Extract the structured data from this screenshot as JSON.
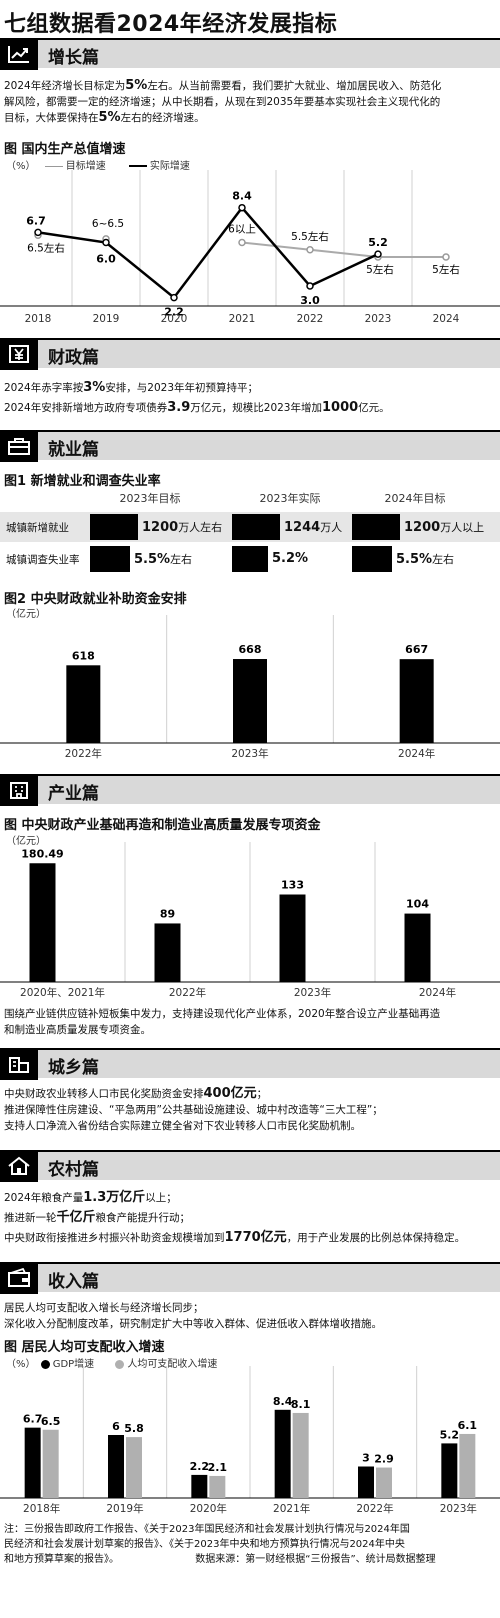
{
  "page_title": "七组数据看2024年经济发展指标",
  "sections": {
    "growth": {
      "label": "增长篇",
      "text_lines": [
        [
          "2024年经济增长目标定为",
          "5%",
          "左右。从当前需要看，我们要扩大就业、增加居民收入、防范化"
        ],
        [
          "解风险，都需要一定的经济增速；从中长期看，从现在到2035年要基本实现社会主义现代化的"
        ],
        [
          "目标，大体要保持在",
          "5%",
          "左右的经济增速。"
        ]
      ]
    },
    "finance": {
      "label": "财政篇",
      "text_lines": [
        [
          "2024年赤字率按",
          "3%",
          "安排，与2023年年初预算持平；"
        ],
        [
          "2024年安排新增地方政府专项债券",
          "3.9",
          "万亿元，规模比2023年增加",
          "1000",
          "亿元。"
        ]
      ]
    },
    "employment": {
      "label": "就业篇"
    },
    "industry": {
      "label": "产业篇",
      "text_lines": [
        [
          "围绕产业链供应链补短板集中发力，支持建设现代化产业体系，2020年整合设立产业基础再造"
        ],
        [
          "和制造业高质量发展专项资金。"
        ]
      ]
    },
    "urban": {
      "label": "城乡篇",
      "text_lines": [
        [
          "中央财政农业转移人口市民化奖励资金安排",
          "400亿元",
          "；"
        ],
        [
          "推进保障性住房建设、“平急两用”公共基础设施建设、城中村改造等“三大工程”；"
        ],
        [
          "支持人口净流入省份结合实际建立健全省对下农业转移人口市民化奖励机制。"
        ]
      ]
    },
    "rural": {
      "label": "农村篇",
      "text_lines": [
        [
          "2024年粮食产量",
          "1.3万亿斤",
          "以上；"
        ],
        [
          "推进新一轮",
          "千亿斤",
          "粮食产能提升行动；"
        ],
        [
          "中央财政衔接推进乡村振兴补助资金规模增加到",
          "1770亿元",
          "，用于产业发展的比例总体保持稳定。"
        ]
      ]
    },
    "income": {
      "label": "收入篇",
      "text_lines": [
        [
          "居民人均可支配收入增长与经济增长同步；"
        ],
        [
          "深化收入分配制度改革，研究制定扩大中等收入群体、促进低收入群体增收措施。"
        ]
      ]
    }
  },
  "footer": {
    "lines": [
      "注：三份报告即政府工作报告、《关于2023年国民经济和社会发展计划执行情况与2024年国",
      "民经济和社会发展计划草案的报告》、《关于2023年中央和地方预算执行情况与2024年中央",
      "和地方预算草案的报告》。                        数据来源：第一财经根据“三份报告”、统计局数据整理"
    ]
  },
  "chart_data": [
    {
      "type": "line",
      "title": "图  国内生产总值增速",
      "unit": "（%）",
      "legend": {
        "target": "目标增速",
        "actual": "实际增速"
      },
      "categories": [
        "2018",
        "2019",
        "2020",
        "2021",
        "2022",
        "2023",
        "2024"
      ],
      "series": [
        {
          "name": "实际增速",
          "values": [
            6.7,
            6.0,
            2.2,
            8.4,
            3.0,
            5.2,
            null
          ],
          "labels": [
            "6.7",
            "6.0",
            "2.2",
            "8.4",
            "3.0",
            "5.2",
            ""
          ]
        },
        {
          "name": "目标增速",
          "values": [
            6.5,
            6.25,
            null,
            6.0,
            5.5,
            5.0,
            5.0
          ],
          "labels": [
            "6.5左右",
            "6~6.5",
            "",
            "6以上",
            "5.5左右",
            "5左右",
            "5左右"
          ]
        }
      ]
    },
    {
      "type": "table",
      "title": "图1  新增就业和调查失业率",
      "columns": [
        "2023年目标",
        "2023年实际",
        "2024年目标"
      ],
      "rows": [
        {
          "label": "城镇新增就业",
          "values": [
            1200,
            1244,
            1200
          ],
          "suffix": [
            "万人左右",
            "万人",
            "万人以上"
          ]
        },
        {
          "label": "城镇调查失业率",
          "values": [
            5.5,
            5.2,
            5.5
          ],
          "suffix": [
            "%左右",
            "%",
            "%左右"
          ]
        }
      ]
    },
    {
      "type": "bar",
      "title": "图2  中央财政就业补助资金安排",
      "unit": "（亿元）",
      "categories": [
        "2022年",
        "2023年",
        "2024年"
      ],
      "values": [
        618,
        668,
        667
      ]
    },
    {
      "type": "bar",
      "title": "图  中央财政产业基础再造和制造业高质量发展专项资金",
      "unit": "（亿元）",
      "categories": [
        "2020年、2021年",
        "2022年",
        "2023年",
        "2024年"
      ],
      "values": [
        180.49,
        89,
        133,
        104
      ]
    },
    {
      "type": "bar",
      "title": "图  居民人均可支配收入增速",
      "unit": "（%）",
      "categories": [
        "2018年",
        "2019年",
        "2020年",
        "2021年",
        "2022年",
        "2023年"
      ],
      "series": [
        {
          "name": "GDP增速",
          "values": [
            6.7,
            6.0,
            2.2,
            8.4,
            3.0,
            5.2
          ]
        },
        {
          "name": "人均可支配收入增速",
          "values": [
            6.5,
            5.8,
            2.1,
            8.1,
            2.9,
            6.1
          ]
        }
      ],
      "colors": {
        "gdp": "#000000",
        "income": "#b0b0b0"
      }
    }
  ]
}
